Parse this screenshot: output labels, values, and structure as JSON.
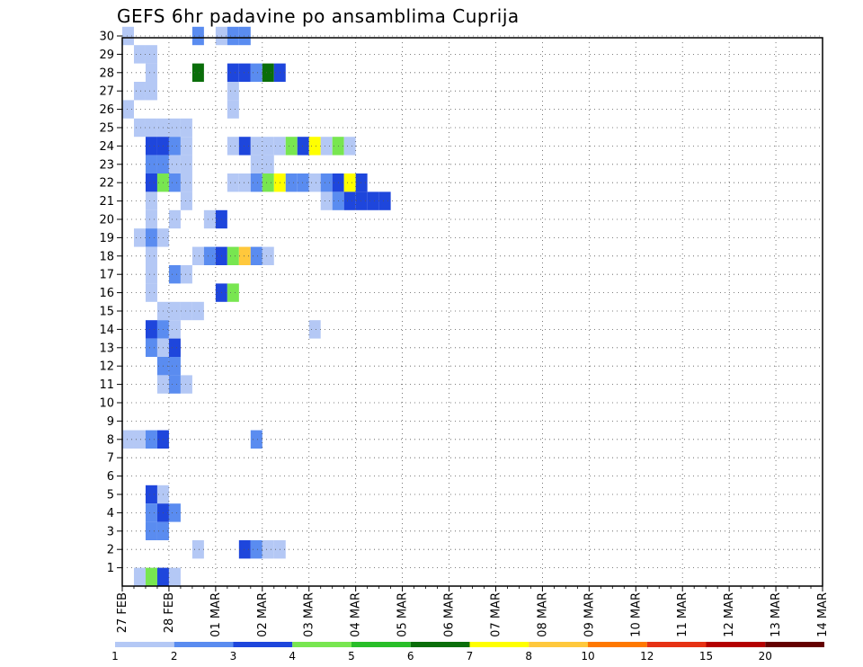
{
  "chart_data": {
    "type": "heatmap",
    "title": "GEFS 6hr padavine po ansamblima Cuprija",
    "members": [
      1,
      2,
      3,
      4,
      5,
      6,
      7,
      8,
      9,
      10,
      11,
      12,
      13,
      14,
      15,
      16,
      17,
      18,
      19,
      20,
      21,
      22,
      23,
      24,
      25,
      26,
      27,
      28,
      29,
      30
    ],
    "date_labels": [
      "27 FEB",
      "28 FEB",
      "01 MAR",
      "02 MAR",
      "03 MAR",
      "04 MAR",
      "05 MAR",
      "06 MAR",
      "07 MAR",
      "08 MAR",
      "09 MAR",
      "10 MAR",
      "11 MAR",
      "12 MAR",
      "13 MAR",
      "14 MAR"
    ],
    "steps_per_day": 4,
    "step_hours": 6,
    "legend": {
      "labels": [
        "1",
        "2",
        "3",
        "4",
        "5",
        "6",
        "7",
        "8",
        "10",
        "12",
        "15",
        "20"
      ],
      "colors": [
        "#b4c8f5",
        "#5a8cf0",
        "#1e46dc",
        "#78e650",
        "#28be28",
        "#0a6e0a",
        "#ffff00",
        "#ffc83c",
        "#ff7800",
        "#e63214",
        "#b40000",
        "#640000"
      ]
    },
    "cells": [
      [
        0.5,
        30,
        1
      ],
      [
        6.5,
        30,
        2
      ],
      [
        8.5,
        30,
        1
      ],
      [
        9.5,
        30,
        2
      ],
      [
        10.5,
        30,
        2
      ],
      [
        1.5,
        29,
        1
      ],
      [
        2.5,
        29,
        1
      ],
      [
        2.5,
        28,
        1
      ],
      [
        6.5,
        28,
        6
      ],
      [
        9.5,
        28,
        3
      ],
      [
        10.5,
        28,
        3
      ],
      [
        11.5,
        28,
        2
      ],
      [
        12.5,
        28,
        6
      ],
      [
        13.5,
        28,
        3
      ],
      [
        1.5,
        27,
        1
      ],
      [
        2.5,
        27,
        1
      ],
      [
        9.5,
        27,
        1
      ],
      [
        0.5,
        26,
        1
      ],
      [
        9.5,
        26,
        1
      ],
      [
        1.5,
        25,
        1
      ],
      [
        2.5,
        25,
        1
      ],
      [
        3.5,
        25,
        1
      ],
      [
        4.5,
        25,
        1
      ],
      [
        5.5,
        25,
        1
      ],
      [
        2.5,
        24,
        3
      ],
      [
        3.5,
        24,
        3
      ],
      [
        4.5,
        24,
        2
      ],
      [
        5.5,
        24,
        1
      ],
      [
        9.5,
        24,
        1
      ],
      [
        10.5,
        24,
        3
      ],
      [
        11.5,
        24,
        1
      ],
      [
        12.5,
        24,
        1
      ],
      [
        13.5,
        24,
        1
      ],
      [
        14.5,
        24,
        4
      ],
      [
        15.5,
        24,
        3
      ],
      [
        16.5,
        24,
        7
      ],
      [
        17.5,
        24,
        1
      ],
      [
        18.5,
        24,
        4
      ],
      [
        19.5,
        24,
        1
      ],
      [
        2.5,
        23,
        2
      ],
      [
        3.5,
        23,
        2
      ],
      [
        4.5,
        23,
        1
      ],
      [
        5.5,
        23,
        1
      ],
      [
        11.5,
        23,
        1
      ],
      [
        12.5,
        23,
        1
      ],
      [
        2.5,
        22,
        3
      ],
      [
        3.5,
        22,
        4
      ],
      [
        4.5,
        22,
        2
      ],
      [
        5.5,
        22,
        1
      ],
      [
        9.5,
        22,
        1
      ],
      [
        10.5,
        22,
        1
      ],
      [
        11.5,
        22,
        2
      ],
      [
        12.5,
        22,
        4
      ],
      [
        13.5,
        22,
        7
      ],
      [
        14.5,
        22,
        2
      ],
      [
        15.5,
        22,
        2
      ],
      [
        16.5,
        22,
        1
      ],
      [
        17.5,
        22,
        2
      ],
      [
        18.5,
        22,
        3
      ],
      [
        19.5,
        22,
        7
      ],
      [
        20.5,
        22,
        3
      ],
      [
        2.5,
        21,
        1
      ],
      [
        5.5,
        21,
        1
      ],
      [
        17.5,
        21,
        1
      ],
      [
        18.5,
        21,
        2
      ],
      [
        19.5,
        21,
        3
      ],
      [
        20.5,
        21,
        3
      ],
      [
        21.5,
        21,
        3
      ],
      [
        22.5,
        21,
        3
      ],
      [
        2.5,
        20,
        1
      ],
      [
        4.5,
        20,
        1
      ],
      [
        7.5,
        20,
        1
      ],
      [
        8.5,
        20,
        3
      ],
      [
        1.5,
        19,
        1
      ],
      [
        2.5,
        19,
        2
      ],
      [
        3.5,
        19,
        1
      ],
      [
        2.5,
        18,
        1
      ],
      [
        6.5,
        18,
        1
      ],
      [
        7.5,
        18,
        2
      ],
      [
        8.5,
        18,
        3
      ],
      [
        9.5,
        18,
        4
      ],
      [
        10.5,
        18,
        8
      ],
      [
        11.5,
        18,
        2
      ],
      [
        12.5,
        18,
        1
      ],
      [
        2.5,
        17,
        1
      ],
      [
        4.5,
        17,
        2
      ],
      [
        5.5,
        17,
        1
      ],
      [
        2.5,
        16,
        1
      ],
      [
        8.5,
        16,
        3
      ],
      [
        9.5,
        16,
        4
      ],
      [
        3.5,
        15,
        1
      ],
      [
        4.5,
        15,
        1
      ],
      [
        5.5,
        15,
        1
      ],
      [
        6.5,
        15,
        1
      ],
      [
        2.5,
        14,
        3
      ],
      [
        3.5,
        14,
        2
      ],
      [
        4.5,
        14,
        1
      ],
      [
        16.5,
        14,
        1
      ],
      [
        2.5,
        13,
        2
      ],
      [
        3.5,
        13,
        1
      ],
      [
        4.5,
        13,
        3
      ],
      [
        3.5,
        12,
        2
      ],
      [
        4.5,
        12,
        2
      ],
      [
        3.5,
        11,
        1
      ],
      [
        4.5,
        11,
        2
      ],
      [
        5.5,
        11,
        1
      ],
      [
        0.5,
        8,
        1
      ],
      [
        1.5,
        8,
        1
      ],
      [
        2.5,
        8,
        2
      ],
      [
        3.5,
        8,
        3
      ],
      [
        11.5,
        8,
        2
      ],
      [
        2.5,
        5,
        3
      ],
      [
        3.5,
        5,
        1
      ],
      [
        2.5,
        4,
        2
      ],
      [
        3.5,
        4,
        3
      ],
      [
        4.5,
        4,
        2
      ],
      [
        2.5,
        3,
        2
      ],
      [
        3.5,
        3,
        2
      ],
      [
        6.5,
        2,
        1
      ],
      [
        10.5,
        2,
        3
      ],
      [
        11.5,
        2,
        2
      ],
      [
        12.5,
        2,
        1
      ],
      [
        13.5,
        2,
        1
      ],
      [
        1.5,
        0.5,
        1
      ],
      [
        2.5,
        0.5,
        4
      ],
      [
        3.5,
        0.5,
        3
      ],
      [
        4.5,
        0.5,
        1
      ]
    ]
  }
}
